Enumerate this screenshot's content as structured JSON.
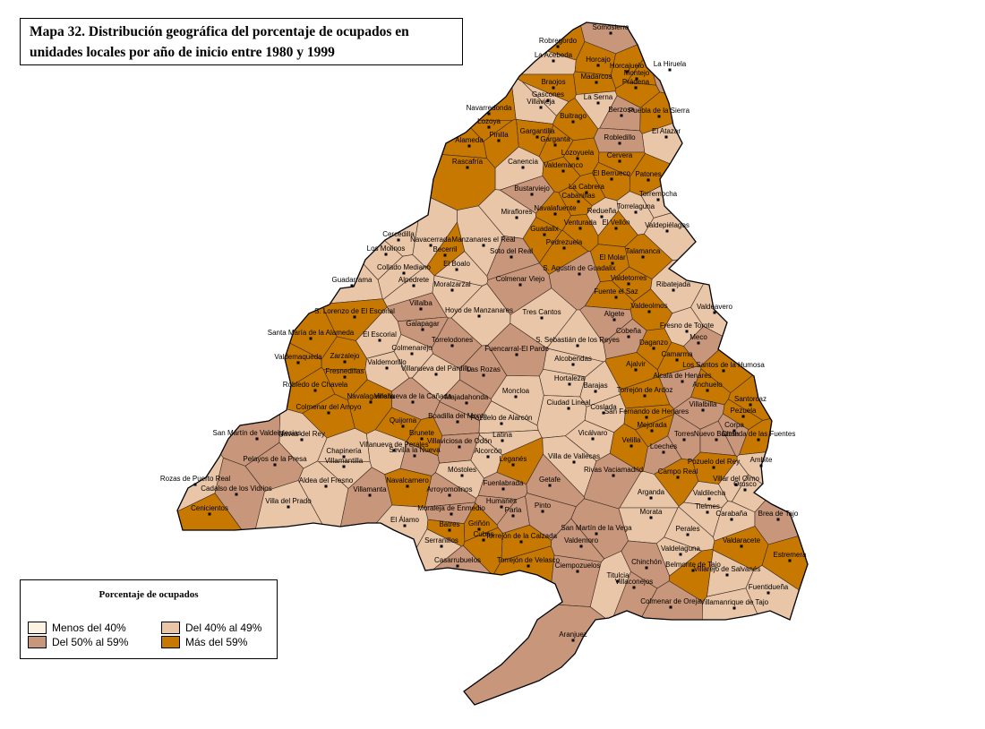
{
  "title": "Mapa 32. Distribución geográfica del porcentaje de ocupados en unidades locales por año de inicio entre 1980 y 1999",
  "legend": {
    "title": "Porcentaje de ocupados",
    "classes": [
      {
        "label": "Menos del 40%",
        "color": "#fdf1e2"
      },
      {
        "label": "Del 40% al 49%",
        "color": "#e9c6a8"
      },
      {
        "label": "Del 50% al 59%",
        "color": "#c8967a"
      },
      {
        "label": "Más del 59%",
        "color": "#c67800"
      }
    ]
  },
  "municipalities": [
    {
      "name": "Somosierra",
      "class": 2
    },
    {
      "name": "Robregordo",
      "class": 3
    },
    {
      "name": "La Acebeda",
      "class": 1
    },
    {
      "name": "Horcajo",
      "class": 3
    },
    {
      "name": "Horcajuelo",
      "class": 3
    },
    {
      "name": "La Hiruela",
      "class": 2
    },
    {
      "name": "Montejo",
      "class": 3
    },
    {
      "name": "Madarcos",
      "class": 3
    },
    {
      "name": "Braojos",
      "class": 3
    },
    {
      "name": "Prádena",
      "class": 3
    },
    {
      "name": "Gascones",
      "class": 1
    },
    {
      "name": "Villavieja",
      "class": 1
    },
    {
      "name": "La Serna",
      "class": 1
    },
    {
      "name": "Puebla de la Sierra",
      "class": 3
    },
    {
      "name": "Navarredonda",
      "class": 3
    },
    {
      "name": "Buitrago",
      "class": 3
    },
    {
      "name": "Berzosa",
      "class": 2
    },
    {
      "name": "Lozoya",
      "class": 3
    },
    {
      "name": "Gargantilla",
      "class": 3
    },
    {
      "name": "Pinilla",
      "class": 3
    },
    {
      "name": "Alameda",
      "class": 3
    },
    {
      "name": "El Atazar",
      "class": 1
    },
    {
      "name": "Robledillo",
      "class": 2
    },
    {
      "name": "Garganta",
      "class": 3
    },
    {
      "name": "Lozoyuela",
      "class": 3
    },
    {
      "name": "Canencia",
      "class": 1
    },
    {
      "name": "Rascafría",
      "class": 3
    },
    {
      "name": "Cervera",
      "class": 3
    },
    {
      "name": "El Berrueco",
      "class": 3
    },
    {
      "name": "Patones",
      "class": 3
    },
    {
      "name": "Valdemanco",
      "class": 3
    },
    {
      "name": "Bustarviejo",
      "class": 2
    },
    {
      "name": "La Cabrera",
      "class": 3
    },
    {
      "name": "Cabanillas",
      "class": 3
    },
    {
      "name": "Torremocha",
      "class": 1
    },
    {
      "name": "Miraflores",
      "class": 1
    },
    {
      "name": "Navalafuente",
      "class": 3
    },
    {
      "name": "Redueña",
      "class": 1
    },
    {
      "name": "Torrelaguna",
      "class": 1
    },
    {
      "name": "Venturada",
      "class": 3
    },
    {
      "name": "El Vellón",
      "class": 3
    },
    {
      "name": "Guadalix",
      "class": 3
    },
    {
      "name": "Valdepiélagos",
      "class": 1
    },
    {
      "name": "Cercedilla",
      "class": 1
    },
    {
      "name": "Navacerrada",
      "class": 1
    },
    {
      "name": "Manzanares el Real",
      "class": 1
    },
    {
      "name": "Becerril",
      "class": 3
    },
    {
      "name": "Pedrezuela",
      "class": 3
    },
    {
      "name": "Soto del Real",
      "class": 2
    },
    {
      "name": "Talamanca",
      "class": 3
    },
    {
      "name": "Los Molinos",
      "class": 1
    },
    {
      "name": "El Boalo",
      "class": 1
    },
    {
      "name": "El Molar",
      "class": 3
    },
    {
      "name": "S. Agustín de Guadalix",
      "class": 2
    },
    {
      "name": "Collado Mediano",
      "class": 1
    },
    {
      "name": "Alpedrete",
      "class": 1
    },
    {
      "name": "Guadarrama",
      "class": 1
    },
    {
      "name": "Colmenar Viejo",
      "class": 2
    },
    {
      "name": "Moralzarzal",
      "class": 1
    },
    {
      "name": "Valdetorres",
      "class": 3
    },
    {
      "name": "Ribatejada",
      "class": 1
    },
    {
      "name": "Fuente el Saz",
      "class": 3
    },
    {
      "name": "Villalba",
      "class": 2
    },
    {
      "name": "Valdeolmos",
      "class": 3
    },
    {
      "name": "Valdeavero",
      "class": 1
    },
    {
      "name": "Hoyo de Manzanares",
      "class": 1
    },
    {
      "name": "S. Lorenzo de El Escorial",
      "class": 3
    },
    {
      "name": "Tres Cantos",
      "class": 1
    },
    {
      "name": "Algete",
      "class": 2
    },
    {
      "name": "Galapagar",
      "class": 2
    },
    {
      "name": "Fresno de Torote",
      "class": 1
    },
    {
      "name": "Santa María de la Alameda",
      "class": 3
    },
    {
      "name": "El Escorial",
      "class": 1
    },
    {
      "name": "Cobeña",
      "class": 2
    },
    {
      "name": "Meco",
      "class": 2
    },
    {
      "name": "Torrelodones",
      "class": 2
    },
    {
      "name": "S. Sebastián de los Reyes",
      "class": 1
    },
    {
      "name": "Daganzo",
      "class": 3
    },
    {
      "name": "Colmenarejo",
      "class": 1
    },
    {
      "name": "Fuencarral-El Pardo",
      "class": 2
    },
    {
      "name": "Zarzalejo",
      "class": 3
    },
    {
      "name": "Camarma",
      "class": 3
    },
    {
      "name": "Valdemaqueda",
      "class": 3
    },
    {
      "name": "Alcobendas",
      "class": 1
    },
    {
      "name": "Valdemorillo",
      "class": 1
    },
    {
      "name": "Villanueva del Pardillo",
      "class": 1
    },
    {
      "name": "Ajalvir",
      "class": 3
    },
    {
      "name": "Los Santos de la Humosa",
      "class": 3
    },
    {
      "name": "Fresnedillas",
      "class": 3
    },
    {
      "name": "Las Rozas",
      "class": 2
    },
    {
      "name": "Alcalá de Henares",
      "class": 2
    },
    {
      "name": "Hortaleza",
      "class": 1
    },
    {
      "name": "Barajas",
      "class": 1
    },
    {
      "name": "Robledo de Chavela",
      "class": 3
    },
    {
      "name": "Torrejón de Ardoz",
      "class": 3
    },
    {
      "name": "Anchuelo",
      "class": 3
    },
    {
      "name": "Moncloa",
      "class": 1
    },
    {
      "name": "Navalagamella",
      "class": 3
    },
    {
      "name": "Villanueva de la Cañada",
      "class": 2
    },
    {
      "name": "Majadahonda",
      "class": 2
    },
    {
      "name": "Santorcaz",
      "class": 3
    },
    {
      "name": "Ciudad Lineal",
      "class": 1
    },
    {
      "name": "Coslada",
      "class": 1
    },
    {
      "name": "Villalbilla",
      "class": 2
    },
    {
      "name": "Colmenar del Arroyo",
      "class": 3
    },
    {
      "name": "Pezuela",
      "class": 3
    },
    {
      "name": "San Fernando de Henares",
      "class": 3
    },
    {
      "name": "Boadilla del Monte",
      "class": 2
    },
    {
      "name": "Pozuelo de Alarcón",
      "class": 1
    },
    {
      "name": "Quijorna",
      "class": 3
    },
    {
      "name": "Mejorada",
      "class": 3
    },
    {
      "name": "Corpa",
      "class": 2
    },
    {
      "name": "Navas del Rey",
      "class": 1
    },
    {
      "name": "San Martín de Valdeiglesias",
      "class": 2
    },
    {
      "name": "Brunete",
      "class": 3
    },
    {
      "name": "Torres",
      "class": 2
    },
    {
      "name": "Nuevo Baztán",
      "class": 2
    },
    {
      "name": "Olmeda de las Fuentes",
      "class": 3
    },
    {
      "name": "Latina",
      "class": 1
    },
    {
      "name": "Vicálvaro",
      "class": 1
    },
    {
      "name": "Villaviciosa de Odón",
      "class": 2
    },
    {
      "name": "Villanueva de Perales",
      "class": 1
    },
    {
      "name": "Sevilla la Nueva",
      "class": 2
    },
    {
      "name": "Velilla",
      "class": 3
    },
    {
      "name": "Loeches",
      "class": 2
    },
    {
      "name": "Chapinería",
      "class": 1
    },
    {
      "name": "Alcorcón",
      "class": 1
    },
    {
      "name": "Leganés",
      "class": 3
    },
    {
      "name": "Pelayos de la Presa",
      "class": 2
    },
    {
      "name": "Ambite",
      "class": 1
    },
    {
      "name": "Villamantilla",
      "class": 1
    },
    {
      "name": "Pozuelo del Rey",
      "class": 3
    },
    {
      "name": "Villa de Vallecas",
      "class": 1
    },
    {
      "name": "Móstoles",
      "class": 1
    },
    {
      "name": "Rivas Vaciamadrid",
      "class": 2
    },
    {
      "name": "Campo Real",
      "class": 3
    },
    {
      "name": "Villar del Olmo",
      "class": 1
    },
    {
      "name": "Rozas de Puerto Real",
      "class": 1
    },
    {
      "name": "Getafe",
      "class": 2
    },
    {
      "name": "Aldea del Fresno",
      "class": 1
    },
    {
      "name": "Navalcarnero",
      "class": 3
    },
    {
      "name": "Fuenlabrada",
      "class": 2
    },
    {
      "name": "Orusco",
      "class": 1
    },
    {
      "name": "Cadalso de los Vidrios",
      "class": 2
    },
    {
      "name": "Arroyomolinos",
      "class": 2
    },
    {
      "name": "Villamanta",
      "class": 2
    },
    {
      "name": "Arganda",
      "class": 1
    },
    {
      "name": "Valdilecha",
      "class": 1
    },
    {
      "name": "Villa del Prado",
      "class": 1
    },
    {
      "name": "Humanes",
      "class": 2
    },
    {
      "name": "Pinto",
      "class": 2
    },
    {
      "name": "Tielmes",
      "class": 1
    },
    {
      "name": "Cenicientos",
      "class": 3
    },
    {
      "name": "Moraleja de Enmedio",
      "class": 2
    },
    {
      "name": "Parla",
      "class": 2
    },
    {
      "name": "Morata",
      "class": 1
    },
    {
      "name": "Carabaña",
      "class": 1
    },
    {
      "name": "Brea de Tajo",
      "class": 2
    },
    {
      "name": "El Álamo",
      "class": 1
    },
    {
      "name": "Batres",
      "class": 3
    },
    {
      "name": "Griñón",
      "class": 3
    },
    {
      "name": "San Martín de la Vega",
      "class": 2
    },
    {
      "name": "Perales",
      "class": 1
    },
    {
      "name": "Cubas",
      "class": 3
    },
    {
      "name": "Torrejón de la Calzada",
      "class": 3
    },
    {
      "name": "Valdemoro",
      "class": 2
    },
    {
      "name": "Valdaracete",
      "class": 3
    },
    {
      "name": "Serranillos",
      "class": 1
    },
    {
      "name": "Valdelaguna",
      "class": 1
    },
    {
      "name": "Estremera",
      "class": 3
    },
    {
      "name": "Torrejón de Velasco",
      "class": 3
    },
    {
      "name": "Casarrubuelos",
      "class": 2
    },
    {
      "name": "Chinchón",
      "class": 2
    },
    {
      "name": "Belmonte de Tajo",
      "class": 3
    },
    {
      "name": "Ciempozuelos",
      "class": 2
    },
    {
      "name": "Villarejo de Salvanés",
      "class": 1
    },
    {
      "name": "Titulcia",
      "class": 1
    },
    {
      "name": "Villaconejos",
      "class": 2
    },
    {
      "name": "Fuentidueña",
      "class": 1
    },
    {
      "name": "Colmenar de Oreja",
      "class": 2
    },
    {
      "name": "Villamanrique de Tajo",
      "class": 1
    },
    {
      "name": "Aranjuez",
      "class": 2
    }
  ]
}
